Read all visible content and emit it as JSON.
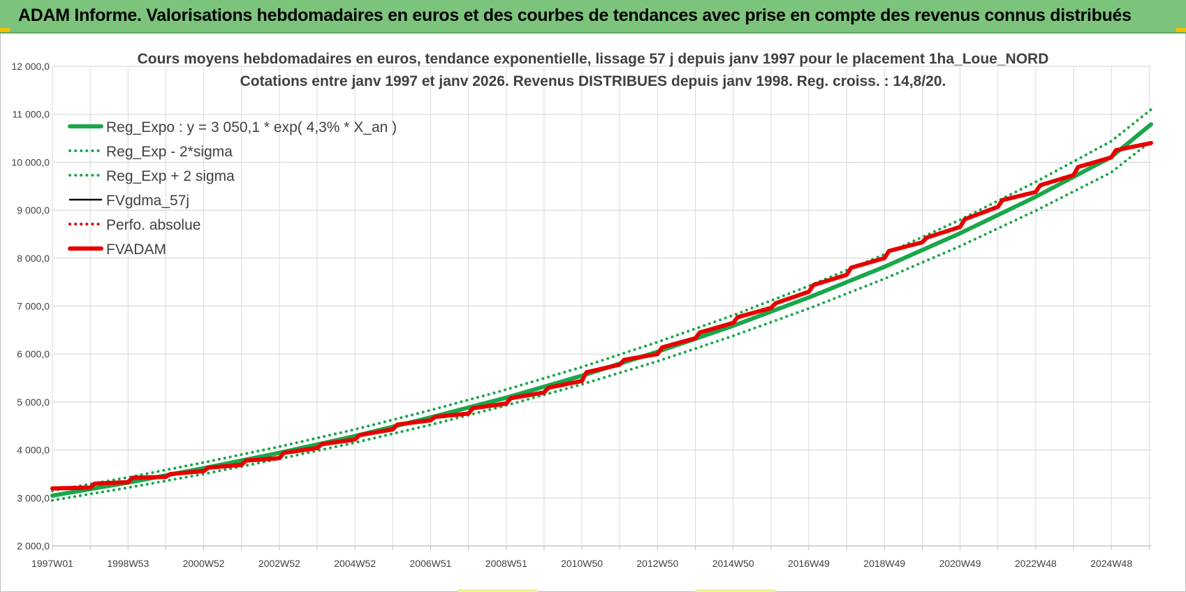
{
  "header": {
    "title": "ADAM Informe. Valorisations hebdomadaires en euros et des courbes de tendances avec prise en compte des revenus connus distribués"
  },
  "colors": {
    "banner": "#7cc47c",
    "trend": "#1aa64a",
    "fvgdma": "#000000",
    "perfo": "#e00000",
    "fvadam": "#e60000",
    "grid": "#d9d9d9"
  },
  "chart_data": {
    "type": "line",
    "title": [
      "Cours moyens hebdomadaires en euros, tendance exponentielle, lissage 57 j depuis janv 1997  pour le placement 1ha_Loue_NORD",
      "Cotations entre janv 1997 et janv 2026. Revenus DISTRIBUES depuis janv 1998.  Reg. croiss. : 14,8/20."
    ],
    "xlabel": "",
    "ylabel": "",
    "ylim": [
      2000,
      12000
    ],
    "y_ticks": [
      "2 000,0",
      "3 000,0",
      "4 000,0",
      "5 000,0",
      "6 000,0",
      "7 000,0",
      "8 000,0",
      "9 000,0",
      "10 000,0",
      "11 000,0",
      "12 000,0"
    ],
    "x_range_years": [
      1997.0,
      2026.05
    ],
    "x_tick_labels": [
      {
        "label": "1997W01",
        "year": 1997.0
      },
      {
        "label": "1998W53",
        "year": 1999.0
      },
      {
        "label": "2000W52",
        "year": 2001.0
      },
      {
        "label": "2002W52",
        "year": 2003.0
      },
      {
        "label": "2004W52",
        "year": 2005.0
      },
      {
        "label": "2006W51",
        "year": 2007.0
      },
      {
        "label": "2008W51",
        "year": 2009.0
      },
      {
        "label": "2010W50",
        "year": 2011.0
      },
      {
        "label": "2012W50",
        "year": 2013.0
      },
      {
        "label": "2014W50",
        "year": 2015.0
      },
      {
        "label": "2016W49",
        "year": 2017.0
      },
      {
        "label": "2018W49",
        "year": 2019.0
      },
      {
        "label": "2020W49",
        "year": 2021.0
      },
      {
        "label": "2022W48",
        "year": 2023.0
      },
      {
        "label": "2024W48",
        "year": 2025.0
      }
    ],
    "grid": true,
    "legend_position": "top-left",
    "series": [
      {
        "name": "Reg_Expo : y = 3 050,1 * exp( 4,3% *  X_an )",
        "style": "solid-thick",
        "color": "#1aa64a",
        "x": [
          1997,
          1999,
          2001,
          2003,
          2005,
          2007,
          2009,
          2011,
          2013,
          2015,
          2017,
          2019,
          2021,
          2023,
          2025,
          2026.05
        ],
        "values": [
          3050,
          3320,
          3620,
          3940,
          4290,
          4680,
          5090,
          5550,
          6050,
          6590,
          7180,
          7820,
          8520,
          9280,
          10110,
          10790
        ]
      },
      {
        "name": "Reg_Exp - 2*sigma",
        "style": "dotted",
        "color": "#1aa64a",
        "x": [
          1997,
          1999,
          2001,
          2003,
          2005,
          2007,
          2009,
          2011,
          2013,
          2015,
          2017,
          2019,
          2021,
          2023,
          2025,
          2026.05
        ],
        "values": [
          2950,
          3215,
          3500,
          3815,
          4155,
          4525,
          4930,
          5370,
          5850,
          6380,
          6950,
          7570,
          8250,
          8990,
          9790,
          10440
        ]
      },
      {
        "name": "Reg_Exp + 2 sigma",
        "style": "dotted",
        "color": "#1aa64a",
        "x": [
          1997,
          1999,
          2001,
          2003,
          2005,
          2007,
          2009,
          2011,
          2013,
          2015,
          2017,
          2019,
          2021,
          2023,
          2025,
          2026.05
        ],
        "values": [
          3150,
          3430,
          3740,
          4070,
          4430,
          4830,
          5260,
          5730,
          6250,
          6810,
          7420,
          8080,
          8800,
          9590,
          10440,
          11100
        ]
      },
      {
        "name": "FVgdma_57j",
        "style": "solid",
        "color": "#000000",
        "x": [
          1997,
          1998,
          1998.12,
          1999,
          1999.12,
          2000,
          2000.12,
          2001,
          2001.12,
          2002,
          2002.12,
          2003,
          2003.12,
          2004,
          2004.12,
          2005,
          2005.12,
          2006,
          2006.12,
          2007,
          2007.12,
          2008,
          2008.12,
          2009,
          2009.12,
          2010,
          2010.12,
          2011,
          2011.12,
          2012,
          2012.12,
          2013,
          2013.12,
          2014,
          2014.12,
          2015,
          2015.12,
          2016,
          2016.12,
          2017,
          2017.12,
          2018,
          2018.12,
          2019,
          2019.12,
          2020,
          2020.12,
          2021,
          2021.12,
          2022,
          2022.12,
          2023,
          2023.12,
          2024,
          2024.12,
          2025,
          2025.12,
          2026.05
        ],
        "values": [
          3200,
          3215,
          3300,
          3330,
          3420,
          3440,
          3500,
          3560,
          3630,
          3690,
          3780,
          3830,
          3940,
          4040,
          4120,
          4220,
          4310,
          4430,
          4530,
          4620,
          4690,
          4760,
          4870,
          4970,
          5080,
          5200,
          5300,
          5440,
          5620,
          5780,
          5880,
          6000,
          6140,
          6330,
          6450,
          6650,
          6770,
          6960,
          7060,
          7300,
          7440,
          7650,
          7800,
          8000,
          8150,
          8330,
          8430,
          8650,
          8810,
          9070,
          9210,
          9380,
          9520,
          9730,
          9900,
          10100,
          10250,
          10400
        ]
      },
      {
        "name": "Perfo. absolue",
        "style": "dotted",
        "color": "#e00000",
        "x": [
          1997,
          1998,
          1998.12,
          1999,
          1999.12,
          2000,
          2000.12,
          2001,
          2001.12,
          2002,
          2002.12,
          2003,
          2003.12,
          2004,
          2004.12,
          2005,
          2005.12,
          2006,
          2006.12,
          2007,
          2007.12,
          2008,
          2008.12,
          2009,
          2009.12,
          2010,
          2010.12,
          2011,
          2011.12,
          2012,
          2012.12,
          2013,
          2013.12,
          2014,
          2014.12,
          2015,
          2015.12,
          2016,
          2016.12,
          2017,
          2017.12,
          2018,
          2018.12,
          2019,
          2019.12,
          2020,
          2020.12,
          2021,
          2021.12,
          2022,
          2022.12,
          2023,
          2023.12,
          2024,
          2024.12,
          2025,
          2025.12,
          2026.05
        ],
        "values": [
          3200,
          3215,
          3300,
          3330,
          3420,
          3440,
          3500,
          3560,
          3630,
          3690,
          3780,
          3830,
          3940,
          4040,
          4120,
          4220,
          4310,
          4430,
          4530,
          4620,
          4690,
          4760,
          4870,
          4970,
          5080,
          5200,
          5300,
          5440,
          5620,
          5780,
          5880,
          6000,
          6140,
          6330,
          6450,
          6650,
          6770,
          6960,
          7060,
          7300,
          7440,
          7650,
          7800,
          8000,
          8150,
          8330,
          8430,
          8650,
          8810,
          9070,
          9210,
          9380,
          9520,
          9730,
          9900,
          10100,
          10250,
          10400
        ]
      },
      {
        "name": "FVADAM",
        "style": "solid-thick",
        "color": "#e60000",
        "x": [
          1997,
          1998,
          1998.12,
          1999,
          1999.12,
          2000,
          2000.12,
          2001,
          2001.12,
          2002,
          2002.12,
          2003,
          2003.12,
          2004,
          2004.12,
          2005,
          2005.12,
          2006,
          2006.12,
          2007,
          2007.12,
          2008,
          2008.12,
          2009,
          2009.12,
          2010,
          2010.12,
          2011,
          2011.12,
          2012,
          2012.12,
          2013,
          2013.12,
          2014,
          2014.12,
          2015,
          2015.12,
          2016,
          2016.12,
          2017,
          2017.12,
          2018,
          2018.12,
          2019,
          2019.12,
          2020,
          2020.12,
          2021,
          2021.12,
          2022,
          2022.12,
          2023,
          2023.12,
          2024,
          2024.12,
          2025,
          2025.12,
          2026.05
        ],
        "values": [
          3200,
          3215,
          3300,
          3330,
          3420,
          3440,
          3500,
          3560,
          3630,
          3690,
          3780,
          3830,
          3940,
          4040,
          4120,
          4220,
          4310,
          4430,
          4530,
          4620,
          4690,
          4760,
          4870,
          4970,
          5080,
          5200,
          5300,
          5440,
          5620,
          5780,
          5880,
          6000,
          6140,
          6330,
          6450,
          6650,
          6770,
          6960,
          7060,
          7300,
          7440,
          7650,
          7800,
          8000,
          8150,
          8330,
          8430,
          8650,
          8810,
          9070,
          9210,
          9380,
          9520,
          9730,
          9900,
          10100,
          10250,
          10400
        ]
      }
    ]
  }
}
